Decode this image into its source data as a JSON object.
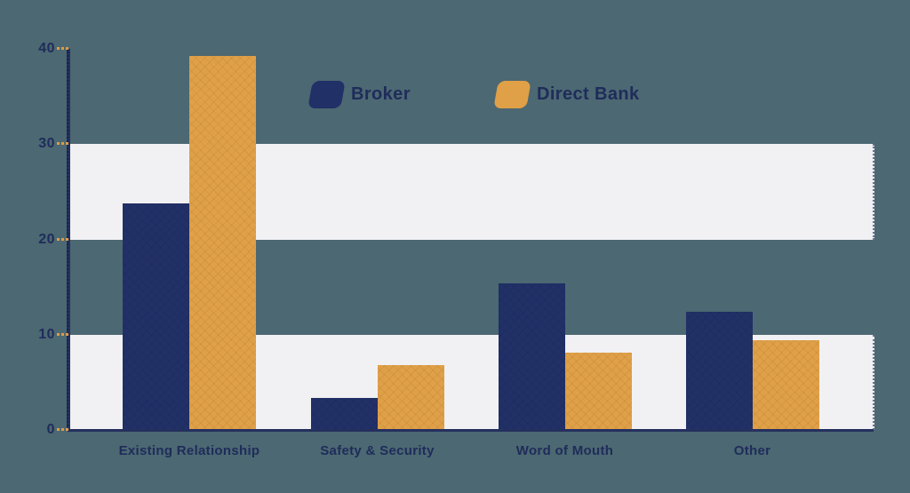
{
  "background_color": "#4c6872",
  "colors": {
    "broker": "#213067",
    "direct_bank": "#e0a047",
    "text": "#1f2c5a",
    "band": "#f1f1f3",
    "axis": "#24305e",
    "tick_dash": "#df9c43"
  },
  "legend": {
    "items": [
      {
        "label": "Broker",
        "color_key": "broker"
      },
      {
        "label": "Direct Bank",
        "color_key": "direct_bank"
      }
    ]
  },
  "chart_data": {
    "type": "bar",
    "title": "",
    "xlabel": "",
    "ylabel": "",
    "categories": [
      "Existing Relationship",
      "Safety & Security",
      "Word of Mouth",
      "Other"
    ],
    "series": [
      {
        "name": "Broker",
        "color_key": "broker",
        "values": [
          23.8,
          3.4,
          15.4,
          12.4
        ]
      },
      {
        "name": "Direct Bank",
        "color_key": "direct_bank",
        "values": [
          39.3,
          6.8,
          8.1,
          9.4
        ]
      }
    ],
    "y_ticks": [
      0,
      10,
      20,
      30,
      40
    ],
    "ylim": [
      0,
      40
    ],
    "grid_bands": [
      [
        0,
        10
      ],
      [
        20,
        30
      ]
    ],
    "grid": "alternating-bands",
    "legend_position": "top-center"
  }
}
